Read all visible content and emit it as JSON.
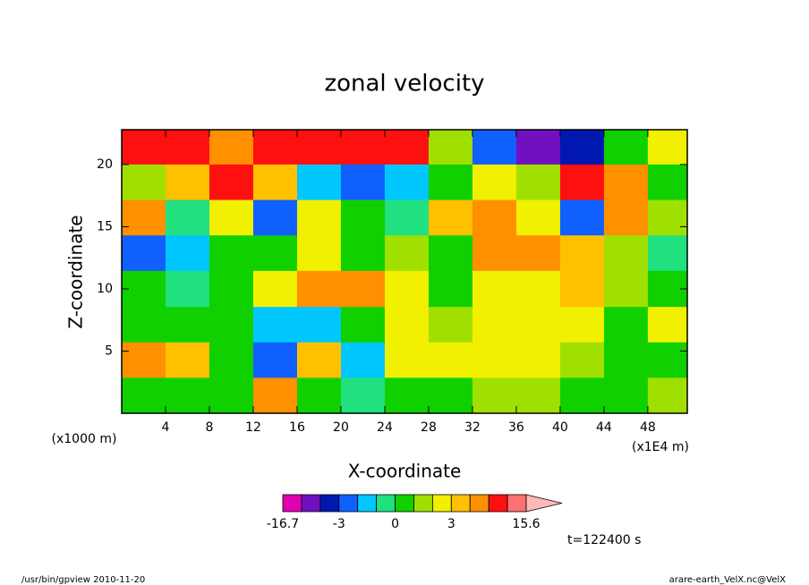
{
  "chart_data": {
    "type": "contour",
    "title": "zonal velocity",
    "x_label": "X-coordinate",
    "y_label": "Z-coordinate",
    "x_unit": "(x1E4 m)",
    "y_unit": "(x1000 m)",
    "time_label": "t=122400 s",
    "footer_left": "/usr/bin/gpview  2010-11-20",
    "footer_right": "arare-earth_VelX.nc@VelX",
    "xlim": [
      0,
      51.6
    ],
    "ylim": [
      0,
      22.8
    ],
    "xticks": [
      4,
      8,
      12,
      16,
      20,
      24,
      28,
      32,
      36,
      40,
      44,
      48
    ],
    "yticks": [
      5,
      10,
      15,
      20
    ],
    "x": [
      2,
      6,
      10,
      14,
      18,
      22,
      26,
      30,
      34,
      38,
      42,
      46,
      50
    ],
    "y": [
      21.4,
      18.6,
      15.7,
      12.9,
      10,
      7.1,
      4.3,
      1.4
    ],
    "z": [
      [
        7,
        6,
        4,
        7,
        7,
        8,
        6,
        1,
        -3,
        -8,
        -4,
        0,
        2
      ],
      [
        1,
        3,
        6,
        3,
        -2,
        -3,
        -1.5,
        0.5,
        2,
        1,
        8,
        5,
        0.5
      ],
      [
        5,
        -1,
        2,
        -3,
        2,
        0.5,
        -1,
        3,
        5,
        2,
        -3,
        5,
        1
      ],
      [
        -3,
        -1.5,
        0.5,
        0,
        2,
        0.5,
        1,
        0.5,
        5,
        5,
        3,
        1,
        -1
      ],
      [
        0.5,
        -1,
        0.5,
        2,
        5,
        5,
        2,
        0.5,
        2,
        2,
        3,
        1,
        0.5
      ],
      [
        0.5,
        0.5,
        0.5,
        -1.5,
        -2,
        0.5,
        2,
        1,
        2,
        2,
        2,
        0.5,
        2
      ],
      [
        5,
        3,
        0.5,
        -3,
        3,
        -2,
        2,
        2,
        2,
        2,
        1,
        0.5,
        0.5
      ],
      [
        0.5,
        0.5,
        0.5,
        4,
        0.5,
        -1,
        0.5,
        0.5,
        1,
        1,
        0.5,
        0.5,
        1
      ]
    ],
    "levels": [
      -16.7,
      -9,
      -6,
      -3,
      -2,
      -1,
      0,
      1,
      2,
      3,
      4,
      6,
      9,
      15.6
    ],
    "colors": [
      "#e000b0",
      "#7010c0",
      "#0018b0",
      "#1060ff",
      "#00c8ff",
      "#20e080",
      "#10d000",
      "#a0e000",
      "#f0f000",
      "#ffc000",
      "#ff9000",
      "#ff1010",
      "#ff7070"
    ],
    "extend_color": "#ffb8b8",
    "colorbar_ticks": [
      -16.7,
      -3,
      0,
      3,
      15.6
    ]
  }
}
